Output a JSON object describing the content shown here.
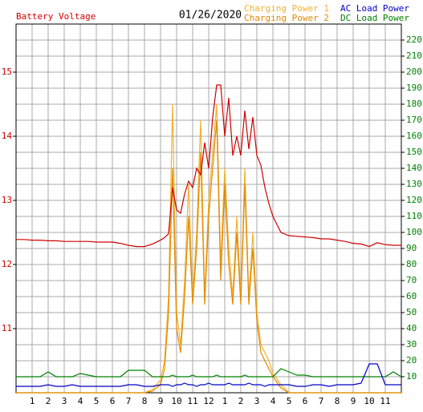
{
  "chart_data": {
    "type": "line",
    "title": "01/26/2020",
    "x": [
      0,
      0.5,
      1,
      1.5,
      2,
      2.5,
      3,
      3.5,
      4,
      4.5,
      5,
      5.5,
      6,
      6.5,
      7,
      7.5,
      8,
      8.5,
      9,
      9.25,
      9.5,
      9.75,
      10,
      10.25,
      10.5,
      10.75,
      11,
      11.25,
      11.5,
      11.75,
      12,
      12.25,
      12.5,
      12.75,
      13,
      13.25,
      13.5,
      13.75,
      14,
      14.25,
      14.5,
      14.75,
      15,
      15.25,
      15.5,
      15.75,
      16,
      16.5,
      17,
      17.5,
      18,
      18.5,
      19,
      19.5,
      20,
      20.5,
      21,
      21.5,
      22,
      22.5,
      23,
      23.5,
      24
    ],
    "xlim": [
      0,
      24
    ],
    "xticks": [
      1,
      2,
      3,
      4,
      5,
      6,
      7,
      8,
      9,
      10,
      11,
      12,
      {
        "value": 13,
        "label": "1"
      },
      {
        "value": 14,
        "label": "2"
      },
      {
        "value": 15,
        "label": "3"
      },
      {
        "value": 16,
        "label": "4"
      },
      {
        "value": 17,
        "label": "5"
      },
      {
        "value": 18,
        "label": "6"
      },
      {
        "value": 19,
        "label": "7"
      },
      {
        "value": 20,
        "label": "8"
      },
      {
        "value": 21,
        "label": "9"
      },
      {
        "value": 22,
        "label": "10"
      },
      {
        "value": 23,
        "label": "11"
      }
    ],
    "ylim": [
      10,
      15.75
    ],
    "yticks": [
      11,
      12,
      13,
      14,
      15
    ],
    "y2lim": [
      0,
      230
    ],
    "y2ticks": [
      10,
      20,
      30,
      40,
      50,
      60,
      70,
      80,
      90,
      100,
      110,
      120,
      130,
      140,
      150,
      160,
      170,
      180,
      190,
      200,
      210,
      220
    ],
    "grid": true,
    "series": [
      {
        "name": "Battery Voltage",
        "color": "#d00000",
        "values": [
          12.39,
          12.39,
          12.38,
          12.38,
          12.37,
          12.37,
          12.36,
          12.36,
          12.36,
          12.36,
          12.35,
          12.35,
          12.35,
          12.33,
          12.3,
          12.28,
          12.28,
          12.32,
          12.38,
          12.42,
          12.48,
          13.2,
          12.85,
          12.8,
          13.1,
          13.3,
          13.2,
          13.5,
          13.4,
          13.9,
          13.5,
          14.3,
          14.8,
          14.8,
          14.0,
          14.6,
          13.7,
          14.0,
          13.7,
          14.4,
          13.8,
          14.3,
          13.7,
          13.55,
          13.2,
          12.95,
          12.75,
          12.5,
          12.45,
          12.44,
          12.43,
          12.42,
          12.4,
          12.4,
          12.38,
          12.36,
          12.33,
          12.32,
          12.28,
          12.34,
          12.31,
          12.3,
          12.3
        ]
      },
      {
        "name": "Charging Power 1",
        "color": "#f5b030",
        "axis": "y2",
        "values": [
          0,
          0,
          0,
          0,
          0,
          0,
          0,
          0,
          0,
          0,
          0,
          0,
          0,
          0,
          0,
          0,
          0,
          2,
          8,
          20,
          60,
          180,
          50,
          30,
          70,
          130,
          60,
          100,
          170,
          60,
          120,
          150,
          180,
          80,
          140,
          90,
          60,
          110,
          60,
          140,
          60,
          100,
          50,
          30,
          25,
          20,
          12,
          5,
          0,
          0,
          0,
          0,
          0,
          0,
          0,
          0,
          0,
          0,
          0,
          0,
          0,
          0,
          0
        ]
      },
      {
        "name": "Charging Power 2",
        "color": "#e08a00",
        "axis": "y2",
        "values": [
          0,
          0,
          0,
          0,
          0,
          0,
          0,
          0,
          0,
          0,
          0,
          0,
          0,
          0,
          0,
          0,
          0,
          1,
          5,
          15,
          50,
          140,
          40,
          25,
          60,
          110,
          55,
          90,
          150,
          55,
          110,
          140,
          170,
          70,
          130,
          80,
          55,
          100,
          55,
          130,
          55,
          90,
          45,
          25,
          20,
          15,
          10,
          3,
          0,
          0,
          0,
          0,
          0,
          0,
          0,
          0,
          0,
          0,
          0,
          0,
          0,
          0,
          0
        ]
      },
      {
        "name": "AC Load Power",
        "color": "#0000c8",
        "axis": "y2",
        "values": [
          4,
          4,
          4,
          4,
          5,
          4,
          4,
          5,
          4,
          4,
          4,
          4,
          4,
          4,
          5,
          5,
          4,
          4,
          5,
          5,
          5,
          4,
          5,
          5,
          6,
          5,
          5,
          4,
          5,
          5,
          6,
          5,
          5,
          5,
          5,
          6,
          5,
          5,
          5,
          5,
          6,
          5,
          5,
          5,
          4,
          5,
          5,
          5,
          5,
          4,
          4,
          5,
          5,
          4,
          5,
          5,
          5,
          6,
          18,
          18,
          5,
          5,
          5
        ]
      },
      {
        "name": "DC Load Power",
        "color": "#008000",
        "axis": "y2",
        "values": [
          10,
          10,
          10,
          10,
          13,
          10,
          10,
          10,
          12,
          11,
          10,
          10,
          10,
          10,
          14,
          14,
          14,
          10,
          10,
          10,
          10,
          11,
          10,
          10,
          10,
          10,
          11,
          10,
          10,
          10,
          10,
          10,
          11,
          10,
          10,
          10,
          10,
          10,
          10,
          11,
          10,
          10,
          10,
          10,
          10,
          10,
          10,
          15,
          13,
          11,
          11,
          10,
          10,
          10,
          10,
          10,
          10,
          10,
          10,
          10,
          10,
          13,
          10
        ]
      }
    ]
  }
}
